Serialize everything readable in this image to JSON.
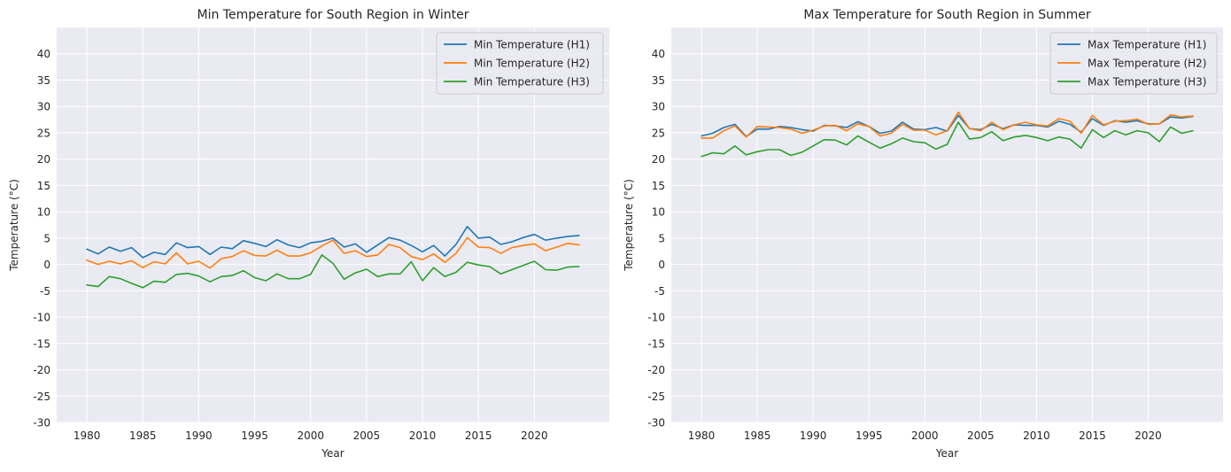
{
  "chart_data": [
    {
      "type": "line",
      "title": "Min Temperature for South Region in Winter",
      "xlabel": "Year",
      "ylabel": "Temperature (°C)",
      "xlim": [
        1977.3,
        2026.7
      ],
      "ylim": [
        -30,
        45
      ],
      "xticks": [
        1980,
        1985,
        1990,
        1995,
        2000,
        2005,
        2010,
        2015,
        2020
      ],
      "yticks": [
        -30,
        -25,
        -20,
        -15,
        -10,
        -5,
        0,
        5,
        10,
        15,
        20,
        25,
        30,
        35,
        40
      ],
      "grid": true,
      "legend_position": "top-right",
      "x": [
        1980,
        1981,
        1982,
        1983,
        1984,
        1985,
        1986,
        1987,
        1988,
        1989,
        1990,
        1991,
        1992,
        1993,
        1994,
        1995,
        1996,
        1997,
        1998,
        1999,
        2000,
        2001,
        2002,
        2003,
        2004,
        2005,
        2006,
        2007,
        2008,
        2009,
        2010,
        2011,
        2012,
        2013,
        2014,
        2015,
        2016,
        2017,
        2018,
        2019,
        2020,
        2021,
        2022,
        2023,
        2024
      ],
      "series": [
        {
          "name": "Min Temperature (H1)",
          "color": "#1f77b4",
          "values": [
            2.9,
            2.0,
            3.3,
            2.5,
            3.2,
            1.3,
            2.3,
            1.9,
            4.1,
            3.2,
            3.4,
            1.9,
            3.3,
            3.0,
            4.5,
            4.0,
            3.4,
            4.7,
            3.7,
            3.2,
            4.1,
            4.4,
            5.0,
            3.3,
            3.9,
            2.3,
            3.7,
            5.1,
            4.6,
            3.6,
            2.4,
            3.6,
            1.6,
            3.8,
            7.2,
            5.0,
            5.2,
            3.8,
            4.3,
            5.1,
            5.7,
            4.6,
            5.0,
            5.3,
            5.5
          ]
        },
        {
          "name": "Min Temperature (H2)",
          "color": "#ff7f0e",
          "values": [
            0.8,
            0.0,
            0.6,
            0.1,
            0.7,
            -0.6,
            0.5,
            0.1,
            2.2,
            0.1,
            0.6,
            -0.7,
            1.1,
            1.5,
            2.6,
            1.7,
            1.6,
            2.7,
            1.6,
            1.6,
            2.2,
            3.5,
            4.6,
            2.1,
            2.6,
            1.5,
            1.8,
            3.8,
            3.2,
            1.5,
            0.9,
            2.0,
            0.4,
            2.1,
            5.1,
            3.3,
            3.2,
            2.1,
            3.2,
            3.6,
            3.9,
            2.6,
            3.3,
            4.0,
            3.7
          ]
        },
        {
          "name": "Min Temperature (H3)",
          "color": "#2ca02c",
          "values": [
            -3.9,
            -4.2,
            -2.3,
            -2.7,
            -3.6,
            -4.4,
            -3.2,
            -3.4,
            -1.9,
            -1.7,
            -2.2,
            -3.3,
            -2.3,
            -2.1,
            -1.2,
            -2.5,
            -3.1,
            -1.8,
            -2.7,
            -2.7,
            -1.9,
            1.8,
            0.2,
            -2.8,
            -1.6,
            -0.9,
            -2.3,
            -1.8,
            -1.8,
            0.5,
            -3.1,
            -0.6,
            -2.3,
            -1.5,
            0.4,
            -0.1,
            -0.4,
            -1.8,
            -1.0,
            -0.2,
            0.6,
            -1.0,
            -1.1,
            -0.5,
            -0.4
          ]
        }
      ]
    },
    {
      "type": "line",
      "title": "Max Temperature for South Region in Summer",
      "xlabel": "Year",
      "ylabel": "Temperature (°C)",
      "xlim": [
        1977.3,
        2026.7
      ],
      "ylim": [
        -30,
        45
      ],
      "xticks": [
        1980,
        1985,
        1990,
        1995,
        2000,
        2005,
        2010,
        2015,
        2020
      ],
      "yticks": [
        -30,
        -25,
        -20,
        -15,
        -10,
        -5,
        0,
        5,
        10,
        15,
        20,
        25,
        30,
        35,
        40
      ],
      "grid": true,
      "legend_position": "top-right",
      "x": [
        1980,
        1981,
        1982,
        1983,
        1984,
        1985,
        1986,
        1987,
        1988,
        1989,
        1990,
        1991,
        1992,
        1993,
        1994,
        1995,
        1996,
        1997,
        1998,
        1999,
        2000,
        2001,
        2002,
        2003,
        2004,
        2005,
        2006,
        2007,
        2008,
        2009,
        2010,
        2011,
        2012,
        2013,
        2014,
        2015,
        2016,
        2017,
        2018,
        2019,
        2020,
        2021,
        2022,
        2023,
        2024
      ],
      "series": [
        {
          "name": "Max Temperature (H1)",
          "color": "#1f77b4",
          "values": [
            24.4,
            24.9,
            26.0,
            26.6,
            24.3,
            25.7,
            25.7,
            26.2,
            26.0,
            25.6,
            25.3,
            26.4,
            26.3,
            26.0,
            27.1,
            26.2,
            24.9,
            25.3,
            27.0,
            25.7,
            25.6,
            26.0,
            25.3,
            28.3,
            25.8,
            25.6,
            26.6,
            25.8,
            26.5,
            26.4,
            26.4,
            26.1,
            27.2,
            26.6,
            25.1,
            27.7,
            26.4,
            27.3,
            27.0,
            27.3,
            26.7,
            26.7,
            28.0,
            27.8,
            28.1
          ]
        },
        {
          "name": "Max Temperature (H2)",
          "color": "#ff7f0e",
          "values": [
            24.0,
            24.0,
            25.4,
            26.3,
            24.2,
            26.2,
            26.1,
            26.0,
            25.7,
            24.9,
            25.5,
            26.3,
            26.4,
            25.4,
            26.7,
            26.2,
            24.4,
            24.9,
            26.6,
            25.5,
            25.5,
            24.6,
            25.4,
            28.9,
            25.8,
            25.4,
            27.0,
            25.6,
            26.5,
            27.0,
            26.5,
            26.3,
            27.7,
            27.2,
            24.9,
            28.3,
            26.5,
            27.2,
            27.3,
            27.6,
            26.6,
            26.7,
            28.4,
            28.0,
            28.2
          ]
        },
        {
          "name": "Max Temperature (H3)",
          "color": "#2ca02c",
          "values": [
            20.5,
            21.2,
            21.0,
            22.5,
            20.8,
            21.4,
            21.8,
            21.8,
            20.7,
            21.3,
            22.5,
            23.7,
            23.6,
            22.7,
            24.4,
            23.2,
            22.1,
            22.9,
            24.0,
            23.3,
            23.1,
            21.9,
            22.8,
            27.0,
            23.8,
            24.1,
            25.2,
            23.5,
            24.2,
            24.5,
            24.1,
            23.5,
            24.2,
            23.8,
            22.1,
            25.6,
            24.1,
            25.4,
            24.6,
            25.4,
            25.0,
            23.3,
            26.1,
            24.9,
            25.4
          ]
        }
      ]
    }
  ]
}
